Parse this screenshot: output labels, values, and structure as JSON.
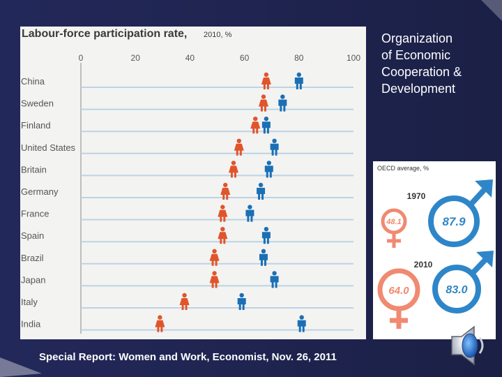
{
  "slide": {
    "org_title": [
      "Organization",
      "of Economic",
      "Cooperation &",
      "Development"
    ],
    "caption": "Special Report: Women and Work, Economist, Nov. 26, 2011"
  },
  "colors": {
    "female": "#e0552b",
    "male": "#1b6fb5",
    "background": "#1d2249"
  },
  "chart_data": [
    {
      "type": "scatter",
      "title": "Labour-force participation rate,",
      "subtitle": "2010, %",
      "xlim": [
        0,
        100
      ],
      "xticks": [
        0,
        20,
        40,
        60,
        80,
        100
      ],
      "categories": [
        "China",
        "Sweden",
        "Finland",
        "United States",
        "Britain",
        "Germany",
        "France",
        "Spain",
        "Brazil",
        "Japan",
        "Italy",
        "India"
      ],
      "series": [
        {
          "name": "Women",
          "color": "#e0552b",
          "values": [
            68,
            67,
            64,
            58,
            56,
            53,
            52,
            52,
            49,
            49,
            38,
            29
          ]
        },
        {
          "name": "Men",
          "color": "#1b6fb5",
          "values": [
            80,
            74,
            68,
            71,
            69,
            66,
            62,
            68,
            67,
            71,
            59,
            81
          ]
        }
      ]
    },
    {
      "type": "bar",
      "title": "OECD average, %",
      "categories": [
        "1970",
        "2010"
      ],
      "series": [
        {
          "name": "Women",
          "values": [
            48.1,
            64.0
          ]
        },
        {
          "name": "Men",
          "values": [
            87.9,
            83.0
          ]
        }
      ],
      "labels": {
        "year_1970": "1970",
        "year_2010": "2010",
        "female_1970": "48.1",
        "male_1970": "87.9",
        "female_2010": "64.0",
        "male_2010": "83.0"
      }
    }
  ]
}
